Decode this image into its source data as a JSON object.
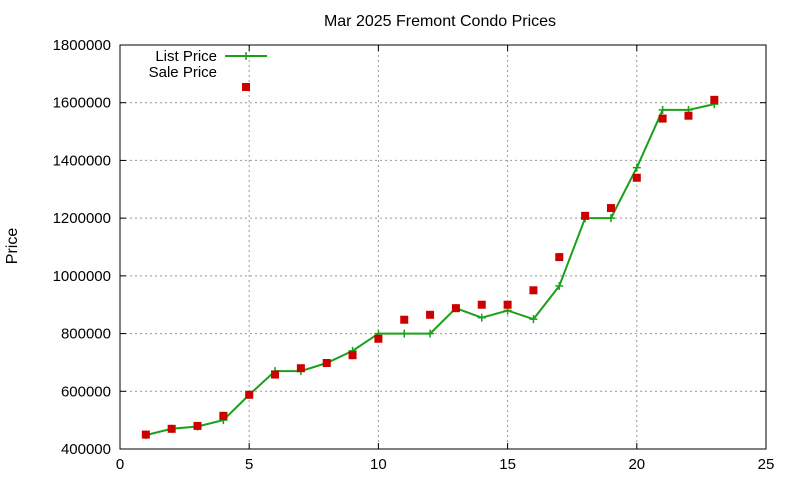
{
  "chart_data": {
    "type": "line",
    "title": "Mar 2025 Fremont Condo Prices",
    "xlabel": "",
    "ylabel": "Price",
    "xlim": [
      0,
      25
    ],
    "ylim": [
      400000,
      1800000
    ],
    "x_ticks": [
      "0",
      "5",
      "10",
      "15",
      "20",
      "25"
    ],
    "y_ticks": [
      "400000",
      "600000",
      "800000",
      "1000000",
      "1200000",
      "1400000",
      "1600000",
      "1800000"
    ],
    "grid": true,
    "legend_position": "top-left",
    "series": [
      {
        "name": "List Price",
        "style": "line-plus",
        "color": "#1aa01a",
        "x": [
          1,
          2,
          3,
          4,
          5,
          6,
          7,
          8,
          9,
          10,
          11,
          12,
          13,
          14,
          15,
          16,
          17,
          18,
          19,
          20,
          21,
          22,
          23
        ],
        "values": [
          448000,
          470000,
          478000,
          500000,
          588000,
          670000,
          670000,
          698000,
          740000,
          800000,
          800000,
          800000,
          888000,
          855000,
          880000,
          850000,
          965000,
          1200000,
          1200000,
          1375000,
          1575000,
          1575000,
          1595000
        ]
      },
      {
        "name": "Sale Price",
        "style": "square",
        "color": "#cc0000",
        "x": [
          1,
          2,
          3,
          4,
          5,
          6,
          7,
          8,
          9,
          10,
          11,
          12,
          13,
          14,
          15,
          16,
          17,
          18,
          19,
          20,
          21,
          22,
          23
        ],
        "values": [
          450000,
          470000,
          480000,
          515000,
          588000,
          658000,
          680000,
          698000,
          725000,
          782000,
          848000,
          865000,
          888000,
          900000,
          900000,
          950000,
          1065000,
          1208000,
          1235000,
          1340000,
          1545000,
          1555000,
          1610000
        ]
      }
    ]
  }
}
